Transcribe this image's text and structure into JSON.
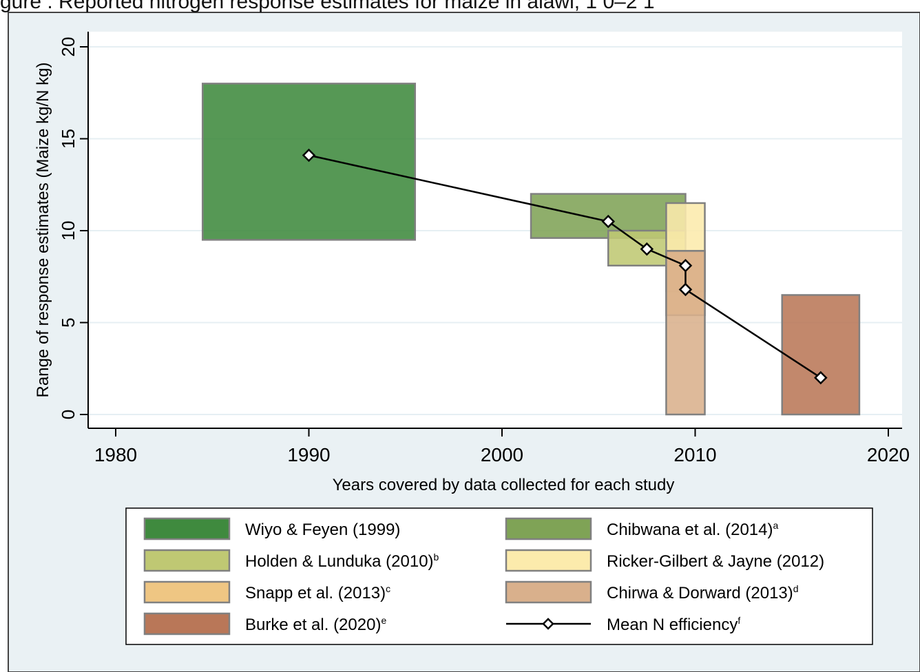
{
  "figure_title": "gure  .  Reported nitrogen response estimates for maize in  alawi, 1  0–2 1",
  "chart_data": {
    "type": "bar",
    "title": "",
    "xlabel": "Years covered by data collected for each study",
    "ylabel": "Range of response estimates (Maize kg/N kg)",
    "xlim": [
      1980,
      2020
    ],
    "ylim": [
      0,
      20
    ],
    "x_ticks": [
      "1980",
      "1990",
      "2000",
      "2010",
      "2020"
    ],
    "y_ticks": [
      "0",
      "5",
      "10",
      "15",
      "20"
    ],
    "grid": "horizontal",
    "legend_position": "bottom",
    "ranges": [
      {
        "name": "Wiyo & Feyen (1999)",
        "sup": "",
        "x_start": 1984.5,
        "x_end": 1995.5,
        "y_low": 9.5,
        "y_high": 18.0,
        "color": "#3f8a3e"
      },
      {
        "name": "Chibwana et al. (2014)",
        "sup": "a",
        "x_start": 2001.5,
        "x_end": 2009.5,
        "y_low": 9.6,
        "y_high": 12.0,
        "color": "#7fa356"
      },
      {
        "name": "Holden & Lunduka (2010)",
        "sup": "b",
        "x_start": 2005.5,
        "x_end": 2009.5,
        "y_low": 8.1,
        "y_high": 10.0,
        "color": "#bfc873"
      },
      {
        "name": "Ricker-Gilbert & Jayne (2012)",
        "sup": "",
        "x_start": 2008.5,
        "x_end": 2010.5,
        "y_low": 6.7,
        "y_high": 11.5,
        "color": "#fcebac"
      },
      {
        "name": "Snapp et al. (2013)",
        "sup": "c",
        "x_start": 2008.5,
        "x_end": 2010.5,
        "y_low": 5.4,
        "y_high": 8.9,
        "color": "#efc683"
      },
      {
        "name": "Chirwa & Dorward (2013)",
        "sup": "d",
        "x_start": 2008.5,
        "x_end": 2010.5,
        "y_low": 0.0,
        "y_high": 8.9,
        "color": "#d9b08c"
      },
      {
        "name": "Burke et al. (2020)",
        "sup": "e",
        "x_start": 2014.5,
        "x_end": 2018.5,
        "y_low": 0.0,
        "y_high": 6.5,
        "color": "#b97758"
      }
    ],
    "series": [
      {
        "name": "Mean N efficiency",
        "sup": "f",
        "x": [
          1990,
          2005.5,
          2007.5,
          2009.5,
          2009.5,
          2016.5
        ],
        "values": [
          14.1,
          10.5,
          9.0,
          8.1,
          6.8,
          2.0
        ]
      }
    ]
  }
}
